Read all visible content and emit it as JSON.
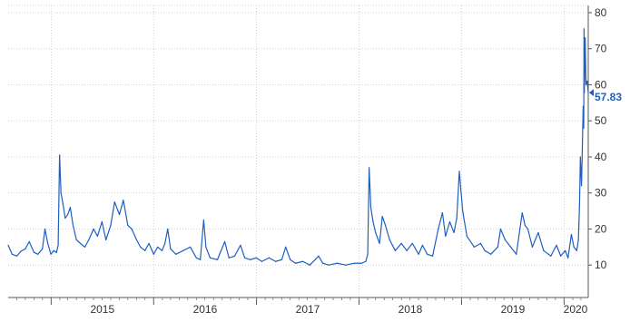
{
  "chart_data": {
    "type": "line",
    "title": "",
    "xlabel": "",
    "ylabel": "",
    "x_tick_labels": [
      "2015",
      "2016",
      "2017",
      "2018",
      "2019",
      "2020"
    ],
    "y_tick_labels": [
      "10",
      "20",
      "30",
      "40",
      "50",
      "60",
      "70",
      "80"
    ],
    "y_ticks": [
      10,
      20,
      30,
      40,
      50,
      60,
      70,
      80
    ],
    "xlim": [
      "2014-08-01",
      "2020-03-27"
    ],
    "ylim": [
      1,
      82
    ],
    "grid": true,
    "last_value_label": "57.83",
    "series": [
      {
        "color": "#1f5fbf",
        "points": [
          [
            "2014-08-01",
            15.5
          ],
          [
            "2014-08-15",
            13.0
          ],
          [
            "2014-09-01",
            12.5
          ],
          [
            "2014-09-15",
            13.8
          ],
          [
            "2014-10-01",
            14.5
          ],
          [
            "2014-10-15",
            16.5
          ],
          [
            "2014-11-01",
            13.5
          ],
          [
            "2014-11-15",
            13.0
          ],
          [
            "2014-12-01",
            14.5
          ],
          [
            "2014-12-10",
            20.0
          ],
          [
            "2014-12-20",
            16.0
          ],
          [
            "2014-12-31",
            13.0
          ],
          [
            "2015-01-10",
            14.0
          ],
          [
            "2015-01-20",
            13.5
          ],
          [
            "2015-01-26",
            15.5
          ],
          [
            "2015-01-31",
            40.5
          ],
          [
            "2015-02-05",
            30.0
          ],
          [
            "2015-02-12",
            27.0
          ],
          [
            "2015-02-20",
            23.0
          ],
          [
            "2015-03-01",
            24.0
          ],
          [
            "2015-03-10",
            26.0
          ],
          [
            "2015-03-20",
            21.0
          ],
          [
            "2015-04-01",
            17.0
          ],
          [
            "2015-04-15",
            16.0
          ],
          [
            "2015-05-01",
            15.0
          ],
          [
            "2015-05-15",
            17.0
          ],
          [
            "2015-06-01",
            20.0
          ],
          [
            "2015-06-15",
            18.0
          ],
          [
            "2015-07-01",
            22.0
          ],
          [
            "2015-07-15",
            17.0
          ],
          [
            "2015-08-01",
            21.0
          ],
          [
            "2015-08-15",
            27.5
          ],
          [
            "2015-09-01",
            24.0
          ],
          [
            "2015-09-15",
            28.0
          ],
          [
            "2015-10-01",
            21.0
          ],
          [
            "2015-10-15",
            20.0
          ],
          [
            "2015-11-01",
            17.0
          ],
          [
            "2015-11-15",
            15.0
          ],
          [
            "2015-12-01",
            14.0
          ],
          [
            "2015-12-15",
            16.0
          ],
          [
            "2016-01-01",
            13.0
          ],
          [
            "2016-01-15",
            15.0
          ],
          [
            "2016-01-31",
            14.0
          ],
          [
            "2016-02-10",
            16.0
          ],
          [
            "2016-02-20",
            20.0
          ],
          [
            "2016-03-01",
            14.5
          ],
          [
            "2016-03-20",
            13.0
          ],
          [
            "2016-04-15",
            14.0
          ],
          [
            "2016-05-10",
            15.0
          ],
          [
            "2016-06-01",
            12.0
          ],
          [
            "2016-06-15",
            11.5
          ],
          [
            "2016-06-27",
            22.5
          ],
          [
            "2016-07-05",
            15.0
          ],
          [
            "2016-07-20",
            12.0
          ],
          [
            "2016-08-15",
            11.5
          ],
          [
            "2016-09-10",
            16.5
          ],
          [
            "2016-09-25",
            12.0
          ],
          [
            "2016-10-15",
            12.5
          ],
          [
            "2016-11-05",
            15.5
          ],
          [
            "2016-11-20",
            12.0
          ],
          [
            "2016-12-10",
            11.5
          ],
          [
            "2016-12-31",
            12.0
          ],
          [
            "2017-01-20",
            11.0
          ],
          [
            "2017-02-15",
            12.0
          ],
          [
            "2017-03-10",
            11.0
          ],
          [
            "2017-04-01",
            11.5
          ],
          [
            "2017-04-15",
            15.0
          ],
          [
            "2017-05-01",
            11.5
          ],
          [
            "2017-05-20",
            10.5
          ],
          [
            "2017-06-15",
            11.0
          ],
          [
            "2017-07-10",
            10.0
          ],
          [
            "2017-08-10",
            12.5
          ],
          [
            "2017-08-25",
            10.5
          ],
          [
            "2017-09-15",
            10.0
          ],
          [
            "2017-10-15",
            10.5
          ],
          [
            "2017-11-15",
            10.0
          ],
          [
            "2017-12-15",
            10.5
          ],
          [
            "2018-01-10",
            10.5
          ],
          [
            "2018-01-25",
            11.0
          ],
          [
            "2018-02-01",
            13.0
          ],
          [
            "2018-02-06",
            37.0
          ],
          [
            "2018-02-12",
            26.0
          ],
          [
            "2018-02-20",
            22.0
          ],
          [
            "2018-03-01",
            19.0
          ],
          [
            "2018-03-15",
            16.0
          ],
          [
            "2018-03-25",
            23.5
          ],
          [
            "2018-04-05",
            21.0
          ],
          [
            "2018-04-20",
            17.0
          ],
          [
            "2018-05-10",
            14.0
          ],
          [
            "2018-06-01",
            16.0
          ],
          [
            "2018-06-20",
            14.0
          ],
          [
            "2018-07-10",
            16.0
          ],
          [
            "2018-08-01",
            13.0
          ],
          [
            "2018-08-15",
            15.5
          ],
          [
            "2018-09-01",
            13.0
          ],
          [
            "2018-09-20",
            12.5
          ],
          [
            "2018-10-10",
            20.0
          ],
          [
            "2018-10-25",
            24.5
          ],
          [
            "2018-11-05",
            18.0
          ],
          [
            "2018-11-20",
            22.0
          ],
          [
            "2018-12-05",
            19.0
          ],
          [
            "2018-12-15",
            23.0
          ],
          [
            "2018-12-24",
            36.0
          ],
          [
            "2019-01-05",
            25.0
          ],
          [
            "2019-01-20",
            18.0
          ],
          [
            "2019-02-15",
            15.0
          ],
          [
            "2019-03-10",
            16.0
          ],
          [
            "2019-03-25",
            14.0
          ],
          [
            "2019-04-15",
            13.0
          ],
          [
            "2019-05-10",
            15.0
          ],
          [
            "2019-05-20",
            20.0
          ],
          [
            "2019-06-05",
            17.0
          ],
          [
            "2019-06-25",
            15.0
          ],
          [
            "2019-07-15",
            13.0
          ],
          [
            "2019-08-05",
            24.5
          ],
          [
            "2019-08-15",
            21.0
          ],
          [
            "2019-08-25",
            20.0
          ],
          [
            "2019-09-10",
            15.0
          ],
          [
            "2019-10-01",
            19.0
          ],
          [
            "2019-10-20",
            14.0
          ],
          [
            "2019-11-15",
            12.5
          ],
          [
            "2019-12-05",
            15.5
          ],
          [
            "2019-12-20",
            12.5
          ],
          [
            "2020-01-05",
            14.0
          ],
          [
            "2020-01-15",
            12.0
          ],
          [
            "2020-01-27",
            18.5
          ],
          [
            "2020-02-05",
            15.0
          ],
          [
            "2020-02-15",
            14.0
          ],
          [
            "2020-02-21",
            17.0
          ],
          [
            "2020-02-25",
            27.0
          ],
          [
            "2020-02-28",
            40.0
          ],
          [
            "2020-03-03",
            32.0
          ],
          [
            "2020-03-05",
            39.0
          ],
          [
            "2020-03-09",
            54.0
          ],
          [
            "2020-03-11",
            48.0
          ],
          [
            "2020-03-12",
            75.5
          ],
          [
            "2020-03-13",
            57.8
          ],
          [
            "2020-03-16",
            73.0
          ],
          [
            "2020-03-19",
            60.0
          ],
          [
            "2020-03-23",
            61.0
          ],
          [
            "2020-03-27",
            57.83
          ]
        ]
      }
    ]
  }
}
